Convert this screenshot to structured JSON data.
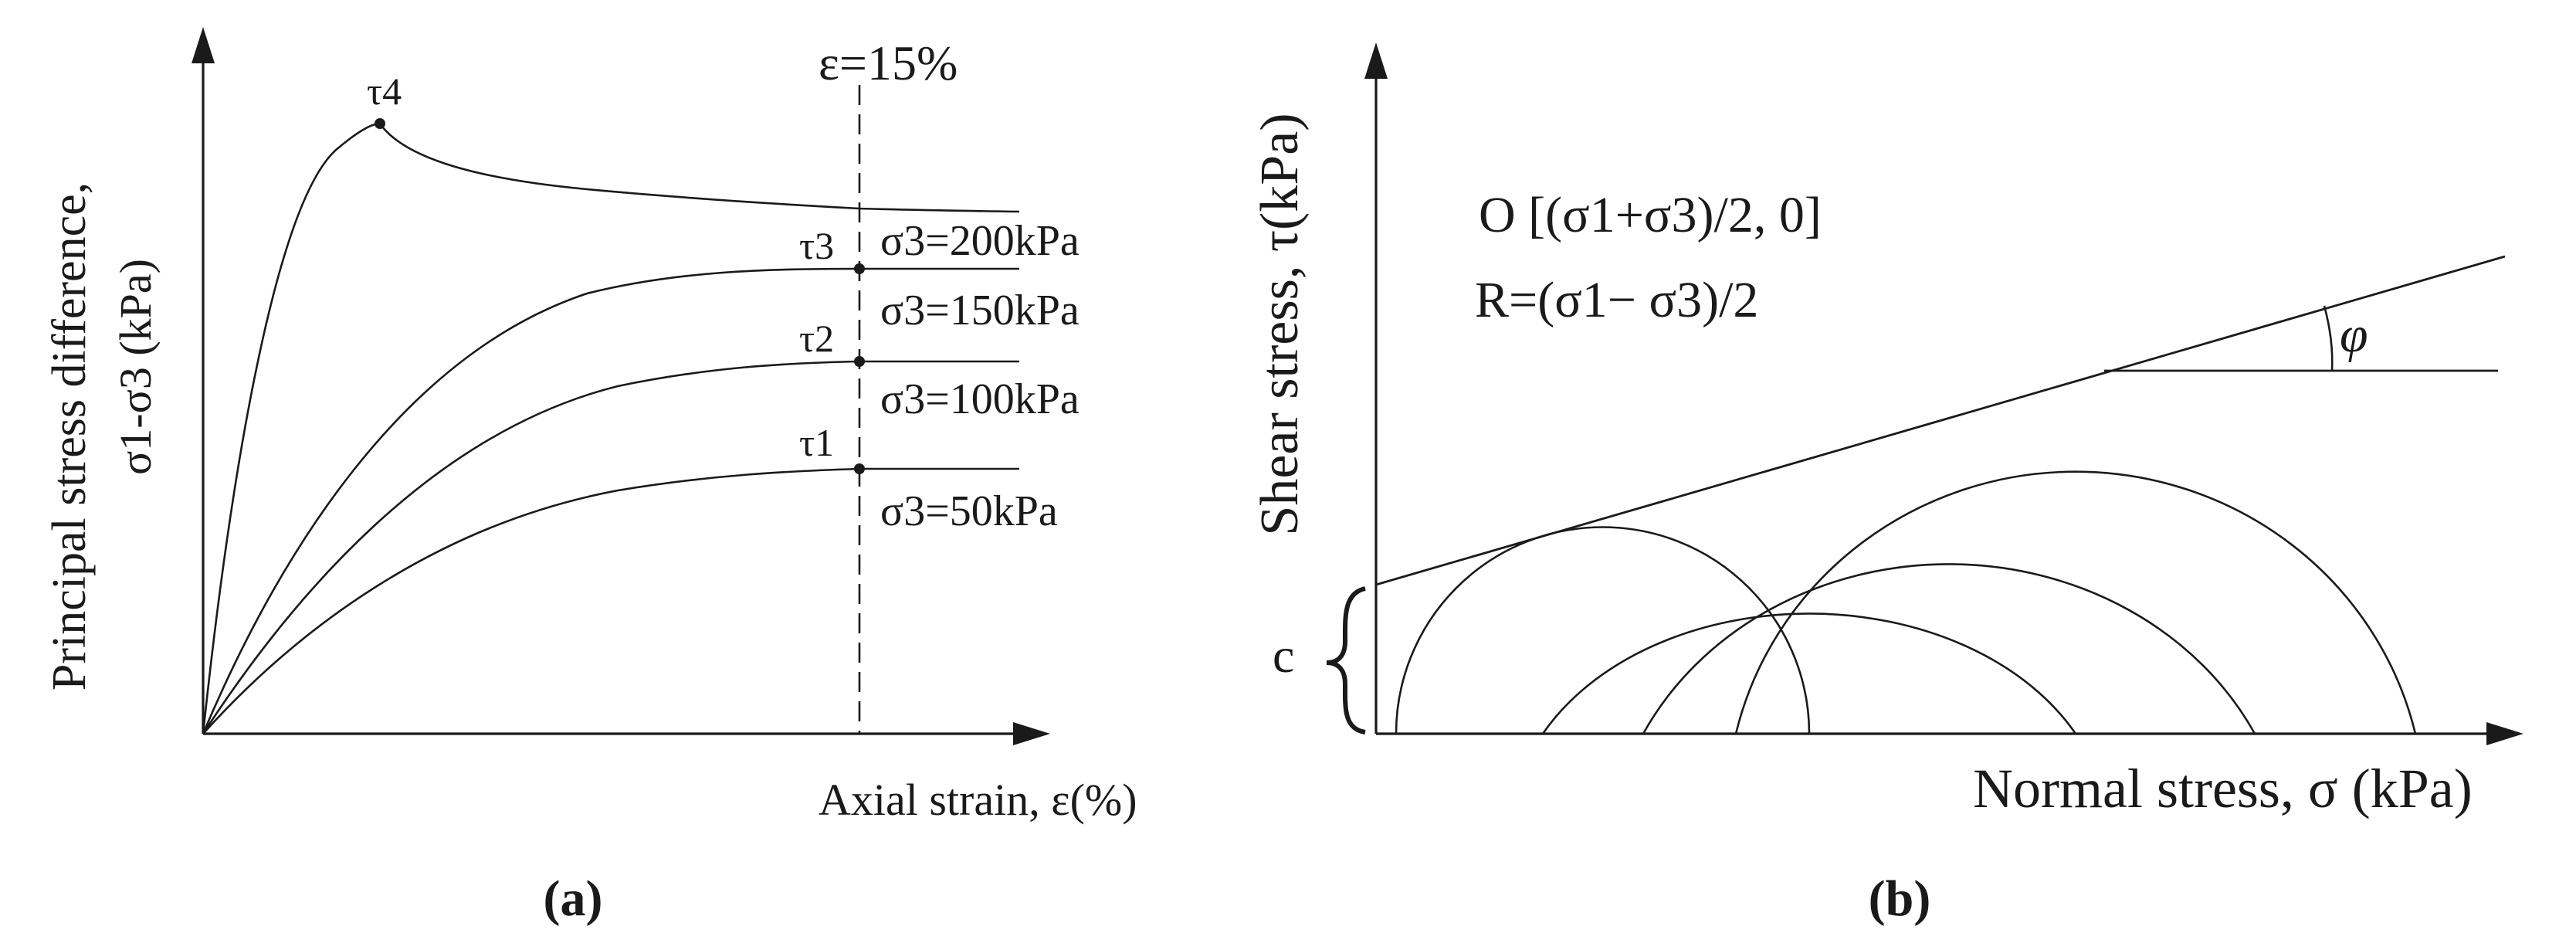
{
  "panel_a": {
    "panel_label": "(a)",
    "y_axis_label_line1": "Principal stress difference,",
    "y_axis_label_line2": "σ1-σ3 (kPa)",
    "x_axis_label": "Axial strain, ε(%)",
    "strain_marker": "ε=15%",
    "peak_label": "τ4",
    "curves": [
      {
        "confining": "σ3=200kPa",
        "point_label": "τ3"
      },
      {
        "confining": "σ3=150kPa",
        "point_label": "τ2"
      },
      {
        "confining": "σ3=100kPa",
        "point_label": "τ1"
      },
      {
        "confining": "σ3=50kPa",
        "point_label": ""
      }
    ]
  },
  "panel_b": {
    "panel_label": "(b)",
    "y_axis_label": "Shear stress, τ(kPa)",
    "x_axis_label": "Normal stress, σ (kPa)",
    "center_formula": "O [(σ1+σ3)/2, 0]",
    "radius_formula": "R=(σ1− σ3)/2",
    "friction_angle": "φ",
    "cohesion": "c"
  },
  "colors": {
    "ink": "#1a1a1a",
    "background": "#ffffff"
  }
}
